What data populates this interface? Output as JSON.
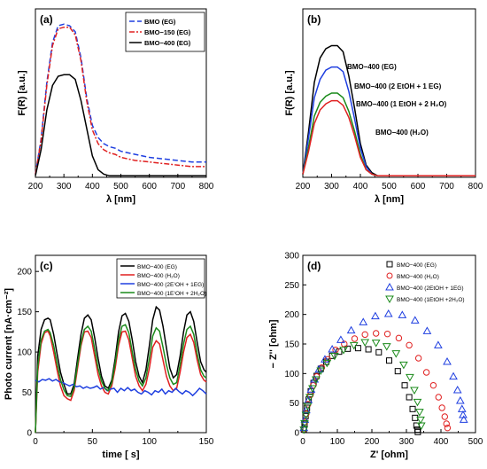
{
  "chart_data": [
    {
      "type": "line",
      "panel_label": "(a)",
      "xlabel": "λ [nm]",
      "ylabel": "F(R) [a.u.]",
      "xlim": [
        200,
        800
      ],
      "xticks": [
        200,
        300,
        400,
        500,
        600,
        700,
        800
      ],
      "yticks": [],
      "legend_position": "top-right",
      "series": [
        {
          "name": "BMO (EG)",
          "color": "#1f3fe0",
          "style": "dash",
          "x": [
            200,
            220,
            240,
            260,
            280,
            300,
            320,
            340,
            360,
            380,
            400,
            420,
            440,
            460,
            480,
            500,
            550,
            600,
            650,
            700,
            750,
            800
          ],
          "y": [
            0.02,
            0.25,
            0.62,
            0.88,
            0.99,
            1.0,
            0.99,
            0.95,
            0.78,
            0.52,
            0.34,
            0.26,
            0.22,
            0.2,
            0.19,
            0.17,
            0.15,
            0.13,
            0.12,
            0.11,
            0.1,
            0.1
          ]
        },
        {
          "name": "BMO−150 (EG)",
          "color": "#e02020",
          "style": "dashdot",
          "x": [
            200,
            220,
            240,
            260,
            280,
            300,
            320,
            340,
            360,
            380,
            400,
            420,
            440,
            460,
            480,
            500,
            550,
            600,
            650,
            700,
            750,
            800
          ],
          "y": [
            0.02,
            0.24,
            0.6,
            0.86,
            0.97,
            0.98,
            0.98,
            0.93,
            0.76,
            0.5,
            0.31,
            0.22,
            0.18,
            0.16,
            0.15,
            0.13,
            0.11,
            0.1,
            0.09,
            0.08,
            0.07,
            0.07
          ]
        },
        {
          "name": "BMO−400 (EG)",
          "color": "#000000",
          "style": "solid",
          "x": [
            200,
            220,
            240,
            260,
            280,
            300,
            320,
            340,
            360,
            380,
            400,
            420,
            440,
            460,
            480,
            500,
            550,
            600,
            650,
            700,
            750,
            800
          ],
          "y": [
            0.01,
            0.18,
            0.44,
            0.6,
            0.66,
            0.67,
            0.67,
            0.64,
            0.5,
            0.32,
            0.14,
            0.05,
            0.02,
            0.01,
            0.01,
            0.01,
            0.01,
            0.01,
            0.01,
            0.01,
            0.01,
            0.01
          ]
        }
      ]
    },
    {
      "type": "line",
      "panel_label": "(b)",
      "xlabel": "λ [nm]",
      "ylabel": "F(R) [a.u.]",
      "xlim": [
        200,
        800
      ],
      "xticks": [
        200,
        300,
        400,
        500,
        600,
        700,
        800
      ],
      "yticks": [],
      "legend_position": "inline labels",
      "series": [
        {
          "name": "BMO−400 (EG)",
          "color": "#000000",
          "x": [
            200,
            220,
            240,
            260,
            280,
            300,
            320,
            340,
            360,
            380,
            400,
            420,
            440,
            460,
            480,
            500,
            550,
            600,
            650,
            700,
            750,
            800
          ],
          "y": [
            0.02,
            0.3,
            0.62,
            0.78,
            0.84,
            0.86,
            0.86,
            0.82,
            0.66,
            0.45,
            0.22,
            0.08,
            0.03,
            0.01,
            0.01,
            0.01,
            0.01,
            0.01,
            0.01,
            0.01,
            0.01,
            0.01
          ]
        },
        {
          "name": "BMO−400 (2 EtOH + 1 EG)",
          "color": "#1f3fe0",
          "x": [
            200,
            220,
            240,
            260,
            280,
            300,
            320,
            340,
            360,
            380,
            400,
            420,
            440,
            460,
            480,
            500,
            550,
            600,
            650,
            700,
            750,
            800
          ],
          "y": [
            0.02,
            0.26,
            0.52,
            0.64,
            0.7,
            0.72,
            0.72,
            0.69,
            0.56,
            0.38,
            0.19,
            0.07,
            0.02,
            0.01,
            0.01,
            0.01,
            0.01,
            0.01,
            0.01,
            0.01,
            0.01,
            0.01
          ]
        },
        {
          "name": "BMO−400 (1 EtOH + 2 H₂O)",
          "color": "#1a8a1a",
          "x": [
            200,
            220,
            240,
            260,
            280,
            300,
            320,
            340,
            360,
            380,
            400,
            420,
            440,
            460,
            480,
            500,
            550,
            600,
            650,
            700,
            750,
            800
          ],
          "y": [
            0.02,
            0.2,
            0.4,
            0.49,
            0.53,
            0.55,
            0.55,
            0.52,
            0.43,
            0.3,
            0.15,
            0.05,
            0.02,
            0.01,
            0.01,
            0.01,
            0.01,
            0.01,
            0.01,
            0.01,
            0.01,
            0.01
          ]
        },
        {
          "name": "BMO−400 (H₂O)",
          "color": "#e02020",
          "x": [
            200,
            220,
            240,
            260,
            280,
            300,
            320,
            340,
            360,
            380,
            400,
            420,
            440,
            460,
            480,
            500,
            550,
            600,
            650,
            700,
            750,
            800
          ],
          "y": [
            0.02,
            0.17,
            0.35,
            0.44,
            0.48,
            0.5,
            0.5,
            0.47,
            0.39,
            0.27,
            0.13,
            0.05,
            0.02,
            0.01,
            0.01,
            0.01,
            0.01,
            0.01,
            0.01,
            0.01,
            0.01,
            0.01
          ]
        }
      ]
    },
    {
      "type": "line",
      "panel_label": "(c)",
      "xlabel": "time [ s]",
      "ylabel": "Photo current [nA·cm⁻²]",
      "xlim": [
        0,
        150
      ],
      "ylim": [
        0,
        220
      ],
      "xticks": [
        0,
        50,
        100,
        150
      ],
      "yticks": [
        0,
        50,
        100,
        150,
        200
      ],
      "legend_position": "top-right",
      "series": [
        {
          "name": "BMO−400 (EG)",
          "color": "#000000",
          "x": [
            0,
            2,
            5,
            8,
            11,
            13,
            16,
            19,
            22,
            25,
            28,
            31,
            34,
            37,
            40,
            43,
            46,
            49,
            52,
            55,
            58,
            61,
            64,
            67,
            70,
            73,
            76,
            79,
            82,
            85,
            88,
            91,
            94,
            97,
            100,
            103,
            106,
            109,
            112,
            115,
            118,
            121,
            124,
            127,
            130,
            133,
            136,
            139,
            142,
            145,
            148,
            150
          ],
          "y": [
            0,
            95,
            128,
            140,
            142,
            140,
            122,
            98,
            75,
            60,
            48,
            48,
            60,
            92,
            122,
            142,
            146,
            140,
            118,
            92,
            70,
            58,
            55,
            65,
            92,
            125,
            145,
            148,
            138,
            115,
            88,
            70,
            62,
            78,
            108,
            140,
            156,
            152,
            132,
            105,
            80,
            68,
            72,
            95,
            125,
            146,
            150,
            138,
            112,
            88,
            78,
            75
          ]
        },
        {
          "name": "BMO−400 (H₂O)",
          "color": "#e02020",
          "x": [
            0,
            2,
            5,
            8,
            11,
            13,
            16,
            19,
            22,
            25,
            28,
            31,
            34,
            37,
            40,
            43,
            46,
            49,
            52,
            55,
            58,
            61,
            64,
            67,
            70,
            73,
            76,
            79,
            82,
            85,
            88,
            91,
            94,
            97,
            100,
            103,
            106,
            109,
            112,
            115,
            118,
            121,
            124,
            127,
            130,
            133,
            136,
            139,
            142,
            145,
            148,
            150
          ],
          "y": [
            0,
            75,
            110,
            124,
            126,
            120,
            100,
            78,
            58,
            46,
            42,
            40,
            52,
            80,
            108,
            125,
            126,
            118,
            95,
            72,
            58,
            50,
            48,
            58,
            80,
            108,
            125,
            126,
            115,
            92,
            70,
            58,
            52,
            60,
            80,
            106,
            114,
            110,
            90,
            70,
            58,
            52,
            55,
            75,
            100,
            118,
            122,
            112,
            90,
            72,
            65,
            63
          ]
        },
        {
          "name": "BMO−400 (2E⁾OH + 1EG)",
          "color": "#1f3fe0",
          "x": [
            0,
            3,
            6,
            9,
            12,
            15,
            18,
            21,
            24,
            27,
            30,
            33,
            36,
            39,
            42,
            45,
            48,
            51,
            54,
            57,
            60,
            63,
            66,
            69,
            72,
            75,
            78,
            81,
            84,
            87,
            90,
            93,
            96,
            99,
            102,
            105,
            108,
            111,
            114,
            117,
            120,
            123,
            126,
            129,
            132,
            135,
            138,
            141,
            144,
            147,
            150
          ],
          "y": [
            65,
            63,
            66,
            65,
            67,
            64,
            66,
            63,
            62,
            60,
            58,
            60,
            57,
            58,
            55,
            57,
            55,
            56,
            58,
            54,
            56,
            52,
            54,
            55,
            50,
            55,
            52,
            56,
            52,
            54,
            50,
            48,
            52,
            50,
            47,
            52,
            50,
            54,
            48,
            52,
            50,
            55,
            51,
            48,
            52,
            50,
            46,
            50,
            55,
            52,
            48
          ]
        },
        {
          "name": "BMO−400 (1E⁾OH + 2H₂O)",
          "color": "#1a8a1a",
          "x": [
            0,
            2,
            5,
            8,
            11,
            13,
            16,
            19,
            22,
            25,
            28,
            31,
            34,
            37,
            40,
            43,
            46,
            49,
            52,
            55,
            58,
            61,
            64,
            67,
            70,
            73,
            76,
            79,
            82,
            85,
            88,
            91,
            94,
            97,
            100,
            103,
            106,
            109,
            112,
            115,
            118,
            121,
            124,
            127,
            130,
            133,
            136,
            139,
            142,
            145,
            148,
            150
          ],
          "y": [
            0,
            82,
            115,
            126,
            128,
            124,
            108,
            86,
            66,
            53,
            46,
            45,
            56,
            85,
            112,
            128,
            132,
            126,
            104,
            80,
            64,
            55,
            52,
            62,
            86,
            115,
            132,
            134,
            124,
            100,
            78,
            64,
            58,
            68,
            92,
            120,
            130,
            126,
            106,
            84,
            68,
            60,
            62,
            84,
            110,
            128,
            132,
            122,
            98,
            78,
            70,
            68
          ]
        }
      ]
    },
    {
      "type": "scatter",
      "panel_label": "(d)",
      "xlabel": "Z' [ohm]",
      "ylabel": "− Z'' [ohm]",
      "xlim": [
        0,
        500
      ],
      "ylim": [
        0,
        300
      ],
      "xticks": [
        0,
        100,
        200,
        300,
        400,
        500
      ],
      "yticks": [
        0,
        50,
        100,
        150,
        200,
        250,
        300
      ],
      "legend_position": "top-right",
      "series": [
        {
          "name": "BMO−400 (EG)",
          "color": "#000000",
          "marker": "square",
          "x": [
            3,
            5,
            8,
            12,
            17,
            23,
            31,
            40,
            52,
            68,
            85,
            105,
            130,
            160,
            190,
            220,
            250,
            275,
            295,
            308,
            318,
            325,
            329,
            332,
            333
          ],
          "y": [
            5,
            15,
            28,
            42,
            56,
            70,
            84,
            96,
            108,
            120,
            130,
            137,
            142,
            143,
            141,
            136,
            122,
            104,
            80,
            60,
            40,
            25,
            12,
            5,
            1
          ]
        },
        {
          "name": "BMO−400 (H₂O)",
          "color": "#e02020",
          "marker": "circle",
          "x": [
            3,
            6,
            10,
            15,
            22,
            30,
            40,
            55,
            72,
            95,
            120,
            150,
            180,
            212,
            245,
            278,
            308,
            335,
            358,
            378,
            393,
            403,
            411,
            416,
            419
          ],
          "y": [
            6,
            18,
            32,
            48,
            64,
            80,
            95,
            110,
            124,
            140,
            150,
            159,
            166,
            168,
            167,
            160,
            148,
            126,
            102,
            80,
            60,
            42,
            27,
            15,
            8
          ]
        },
        {
          "name": "BMO−400 (2EtOH + 1EG)",
          "color": "#1f3fe0",
          "marker": "triangle",
          "x": [
            3,
            6,
            10,
            16,
            24,
            34,
            47,
            64,
            85,
            110,
            140,
            175,
            210,
            248,
            288,
            325,
            360,
            392,
            418,
            436,
            448,
            456,
            461,
            464,
            466
          ],
          "y": [
            8,
            22,
            38,
            55,
            73,
            90,
            107,
            124,
            141,
            157,
            173,
            187,
            197,
            201,
            199,
            190,
            172,
            148,
            120,
            95,
            72,
            54,
            40,
            30,
            22
          ]
        },
        {
          "name": "BMO−400 (1EtOH +2H₂O)",
          "color": "#1a8a1a",
          "marker": "triangle-down",
          "x": [
            3,
            5,
            9,
            14,
            20,
            28,
            38,
            52,
            70,
            92,
            118,
            148,
            180,
            212,
            243,
            270,
            292,
            310,
            323,
            332,
            338,
            341,
            343
          ],
          "y": [
            5,
            16,
            30,
            45,
            60,
            75,
            90,
            105,
            118,
            130,
            140,
            148,
            153,
            152,
            146,
            134,
            115,
            94,
            72,
            52,
            35,
            22,
            12
          ]
        }
      ]
    }
  ]
}
